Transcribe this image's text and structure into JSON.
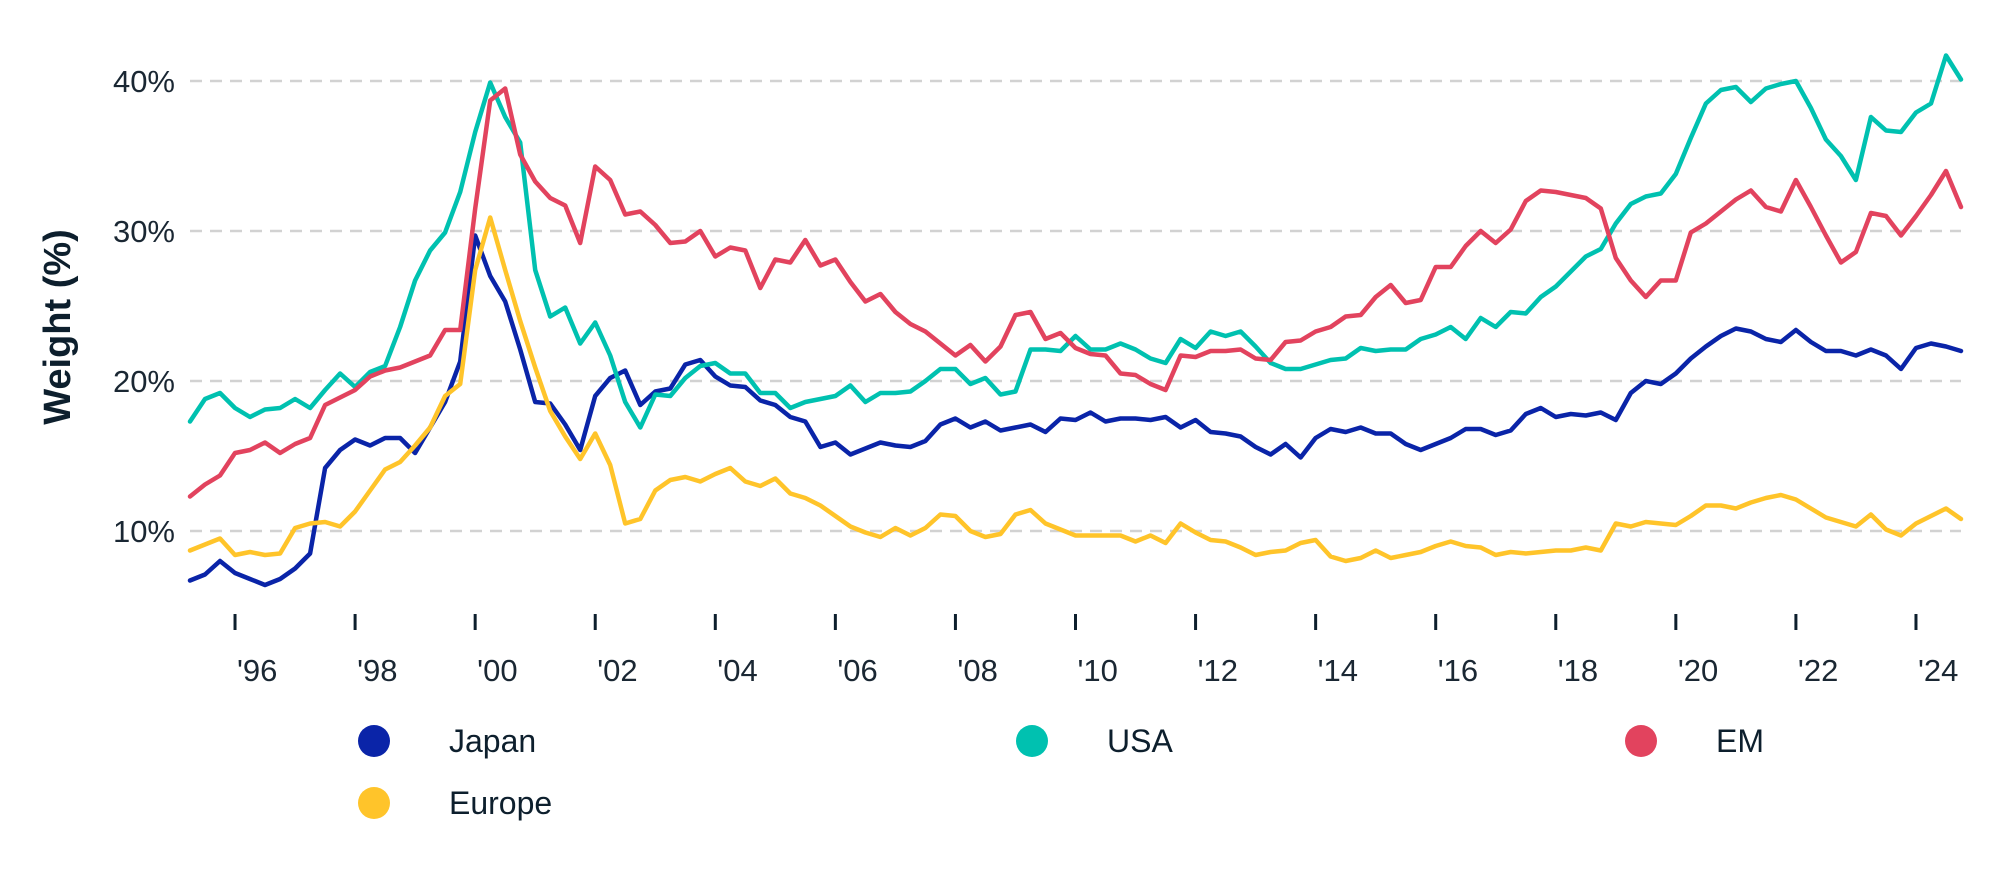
{
  "chart_data": {
    "type": "line",
    "title": "",
    "xlabel": "",
    "ylabel": "Weight (%)",
    "ylim": [
      5,
      42
    ],
    "xlim": [
      1995.25,
      2024.75
    ],
    "grid": "horizontal dashed",
    "legend_position": "bottom",
    "y_ticks": [
      {
        "value": 10,
        "label": "10%"
      },
      {
        "value": 20,
        "label": "20%"
      },
      {
        "value": 30,
        "label": "30%"
      },
      {
        "value": 40,
        "label": "40%"
      }
    ],
    "x_ticks": [
      {
        "value": 1996,
        "label": "'96"
      },
      {
        "value": 1998,
        "label": "'98"
      },
      {
        "value": 2000,
        "label": "'00"
      },
      {
        "value": 2002,
        "label": "'02"
      },
      {
        "value": 2004,
        "label": "'04"
      },
      {
        "value": 2006,
        "label": "'06"
      },
      {
        "value": 2008,
        "label": "'08"
      },
      {
        "value": 2010,
        "label": "'10"
      },
      {
        "value": 2012,
        "label": "'12"
      },
      {
        "value": 2014,
        "label": "'14"
      },
      {
        "value": 2016,
        "label": "'16"
      },
      {
        "value": 2018,
        "label": "'18"
      },
      {
        "value": 2020,
        "label": "'20"
      },
      {
        "value": 2022,
        "label": "'22"
      },
      {
        "value": 2024,
        "label": "'24"
      }
    ],
    "x": [
      1995.25,
      1995.5,
      1995.75,
      1996,
      1996.25,
      1996.5,
      1996.75,
      1997,
      1997.25,
      1997.5,
      1997.75,
      1998,
      1998.25,
      1998.5,
      1998.75,
      1999,
      1999.25,
      1999.5,
      1999.75,
      2000,
      2000.25,
      2000.5,
      2000.75,
      2001,
      2001.25,
      2001.5,
      2001.75,
      2002,
      2002.25,
      2002.5,
      2002.75,
      2003,
      2003.25,
      2003.5,
      2003.75,
      2004,
      2004.25,
      2004.5,
      2004.75,
      2005,
      2005.25,
      2005.5,
      2005.75,
      2006,
      2006.25,
      2006.5,
      2006.75,
      2007,
      2007.25,
      2007.5,
      2007.75,
      2008,
      2008.25,
      2008.5,
      2008.75,
      2009,
      2009.25,
      2009.5,
      2009.75,
      2010,
      2010.25,
      2010.5,
      2010.75,
      2011,
      2011.25,
      2011.5,
      2011.75,
      2012,
      2012.25,
      2012.5,
      2012.75,
      2013,
      2013.25,
      2013.5,
      2013.75,
      2014,
      2014.25,
      2014.5,
      2014.75,
      2015,
      2015.25,
      2015.5,
      2015.75,
      2016,
      2016.25,
      2016.5,
      2016.75,
      2017,
      2017.25,
      2017.5,
      2017.75,
      2018,
      2018.25,
      2018.5,
      2018.75,
      2019,
      2019.25,
      2019.5,
      2019.75,
      2020,
      2020.25,
      2020.5,
      2020.75,
      2021,
      2021.25,
      2021.5,
      2021.75,
      2022,
      2022.25,
      2022.5,
      2022.75,
      2023,
      2023.25,
      2023.5,
      2023.75,
      2024,
      2024.25,
      2024.5,
      2024.75
    ],
    "series": [
      {
        "name": "Japan",
        "color": "#0a24a8",
        "values": [
          6.7,
          7.1,
          8.0,
          7.2,
          6.8,
          6.4,
          6.8,
          7.5,
          8.5,
          14.2,
          15.4,
          16.1,
          15.7,
          16.2,
          16.2,
          15.2,
          16.9,
          18.6,
          21.3,
          29.7,
          27.0,
          25.3,
          22.1,
          18.6,
          18.5,
          17.1,
          15.4,
          19.0,
          20.2,
          20.7,
          18.4,
          19.3,
          19.5,
          21.1,
          21.4,
          20.3,
          19.7,
          19.6,
          18.7,
          18.4,
          17.6,
          17.3,
          15.6,
          15.9,
          15.1,
          15.5,
          15.9,
          15.7,
          15.6,
          16.0,
          17.1,
          17.5,
          16.9,
          17.3,
          16.7,
          16.9,
          17.1,
          16.6,
          17.5,
          17.4,
          17.9,
          17.3,
          17.5,
          17.5,
          17.4,
          17.6,
          16.9,
          17.4,
          16.6,
          16.5,
          16.3,
          15.6,
          15.1,
          15.8,
          14.9,
          16.2,
          16.8,
          16.6,
          16.9,
          16.5,
          16.5,
          15.8,
          15.4,
          15.8,
          16.2,
          16.8,
          16.8,
          16.4,
          16.7,
          17.8,
          18.2,
          17.6,
          17.8,
          17.7,
          17.9,
          17.4,
          19.2,
          20.0,
          19.8,
          20.5,
          21.5,
          22.3,
          23.0,
          23.5,
          23.3,
          22.8,
          22.6,
          23.4,
          22.6,
          22.0,
          22.0,
          21.7,
          22.1,
          21.7,
          20.8,
          22.2,
          22.5,
          22.3,
          22.0
        ]
      },
      {
        "name": "USA",
        "color": "#00c1b0",
        "values": [
          17.3,
          18.8,
          19.2,
          18.2,
          17.6,
          18.1,
          18.2,
          18.8,
          18.2,
          19.4,
          20.5,
          19.6,
          20.6,
          21.0,
          23.6,
          26.7,
          28.7,
          29.9,
          32.6,
          36.6,
          39.9,
          37.6,
          35.9,
          27.4,
          24.3,
          24.9,
          22.5,
          23.9,
          21.7,
          18.6,
          16.9,
          19.1,
          19.0,
          20.2,
          21.0,
          21.2,
          20.5,
          20.5,
          19.2,
          19.2,
          18.2,
          18.6,
          18.8,
          19.0,
          19.7,
          18.6,
          19.2,
          19.2,
          19.3,
          20.0,
          20.8,
          20.8,
          19.8,
          20.2,
          19.1,
          19.3,
          22.1,
          22.1,
          22.0,
          23.0,
          22.1,
          22.1,
          22.5,
          22.1,
          21.5,
          21.2,
          22.8,
          22.2,
          23.3,
          23.0,
          23.3,
          22.3,
          21.2,
          20.8,
          20.8,
          21.1,
          21.4,
          21.5,
          22.2,
          22.0,
          22.1,
          22.1,
          22.8,
          23.1,
          23.6,
          22.8,
          24.2,
          23.6,
          24.6,
          24.5,
          25.6,
          26.3,
          27.3,
          28.3,
          28.8,
          30.5,
          31.8,
          32.3,
          32.5,
          33.8,
          36.2,
          38.5,
          39.4,
          39.6,
          38.6,
          39.5,
          39.8,
          40.0,
          38.2,
          36.1,
          35.0,
          33.4,
          37.6,
          36.7,
          36.6,
          37.9,
          38.5,
          41.7,
          40.1
        ]
      },
      {
        "name": "EM",
        "color": "#e2435e",
        "values": [
          12.3,
          13.1,
          13.7,
          15.2,
          15.4,
          15.9,
          15.2,
          15.8,
          16.2,
          18.4,
          18.9,
          19.4,
          20.3,
          20.7,
          20.9,
          21.3,
          21.7,
          23.4,
          23.4,
          31.5,
          38.7,
          39.5,
          35.1,
          33.3,
          32.2,
          31.7,
          29.2,
          34.3,
          33.4,
          31.1,
          31.3,
          30.4,
          29.2,
          29.3,
          30.0,
          28.3,
          28.9,
          28.7,
          26.2,
          28.1,
          27.9,
          29.4,
          27.7,
          28.1,
          26.6,
          25.3,
          25.8,
          24.6,
          23.8,
          23.3,
          22.5,
          21.7,
          22.4,
          21.3,
          22.3,
          24.4,
          24.6,
          22.8,
          23.2,
          22.2,
          21.8,
          21.7,
          20.5,
          20.4,
          19.8,
          19.4,
          21.7,
          21.6,
          22.0,
          22.0,
          22.1,
          21.5,
          21.4,
          22.6,
          22.7,
          23.3,
          23.6,
          24.3,
          24.4,
          25.6,
          26.4,
          25.2,
          25.4,
          27.6,
          27.6,
          29.0,
          30.0,
          29.2,
          30.1,
          32.0,
          32.7,
          32.6,
          32.4,
          32.2,
          31.5,
          28.2,
          26.7,
          25.6,
          26.7,
          26.7,
          29.9,
          30.5,
          31.3,
          32.1,
          32.7,
          31.6,
          31.3,
          33.4,
          31.6,
          29.7,
          27.9,
          28.6,
          31.2,
          31.0,
          29.7,
          31.0,
          32.4,
          34.0,
          31.6
        ]
      },
      {
        "name": "Europe",
        "color": "#ffc42a",
        "values": [
          8.7,
          9.1,
          9.5,
          8.4,
          8.6,
          8.4,
          8.5,
          10.2,
          10.5,
          10.6,
          10.3,
          11.3,
          12.7,
          14.1,
          14.6,
          15.7,
          16.9,
          19.0,
          19.8,
          27.4,
          30.9,
          27.4,
          24.0,
          20.9,
          18.0,
          16.3,
          14.8,
          16.5,
          14.4,
          10.5,
          10.8,
          12.7,
          13.4,
          13.6,
          13.3,
          13.8,
          14.2,
          13.3,
          13.0,
          13.5,
          12.5,
          12.2,
          11.7,
          11.0,
          10.3,
          9.9,
          9.6,
          10.2,
          9.7,
          10.2,
          11.1,
          11.0,
          10.0,
          9.6,
          9.8,
          11.1,
          11.4,
          10.5,
          10.1,
          9.7,
          9.7,
          9.7,
          9.7,
          9.3,
          9.7,
          9.2,
          10.5,
          9.9,
          9.4,
          9.3,
          8.9,
          8.4,
          8.6,
          8.7,
          9.2,
          9.4,
          8.3,
          8.0,
          8.2,
          8.7,
          8.2,
          8.4,
          8.6,
          9.0,
          9.3,
          9.0,
          8.9,
          8.4,
          8.6,
          8.5,
          8.6,
          8.7,
          8.7,
          8.9,
          8.7,
          10.5,
          10.3,
          10.6,
          10.5,
          10.4,
          11.0,
          11.7,
          11.7,
          11.5,
          11.9,
          12.2,
          12.4,
          12.1,
          11.5,
          10.9,
          10.6,
          10.3,
          11.1,
          10.1,
          9.7,
          10.5,
          11.0,
          11.5,
          10.8
        ]
      }
    ],
    "legend": [
      {
        "label": "Japan",
        "color": "#0a24a8"
      },
      {
        "label": "USA",
        "color": "#00c1b0"
      },
      {
        "label": "EM",
        "color": "#e2435e"
      },
      {
        "label": "Europe",
        "color": "#ffc42a"
      }
    ]
  }
}
